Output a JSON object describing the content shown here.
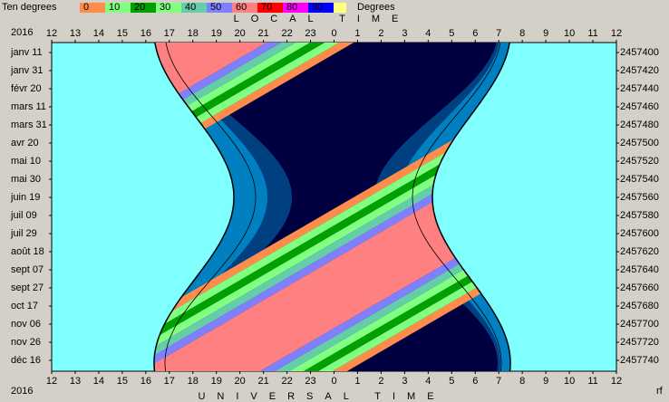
{
  "chart_data": {
    "type": "sky-diagram",
    "legend_title": "Ten degrees",
    "legend_unit": "Degrees",
    "legend": [
      {
        "label": 0,
        "color": "#ff8c4a"
      },
      {
        "label": 10,
        "color": "#80ff80"
      },
      {
        "label": 20,
        "color": "#00a000"
      },
      {
        "label": 30,
        "color": "#80ff80"
      },
      {
        "label": 40,
        "color": "#66cdaa"
      },
      {
        "label": 50,
        "color": "#8080ff"
      },
      {
        "label": 60,
        "color": "#ff8080"
      },
      {
        "label": 70,
        "color": "#ff0000"
      },
      {
        "label": 80,
        "color": "#ff00ff"
      },
      {
        "label": 90,
        "color": "#0000ff"
      }
    ],
    "top_title": "LOCAL TIME",
    "bottom_title": "UNIVERSAL TIME",
    "year": "2016",
    "corner_note": "rf",
    "hours": [
      12,
      13,
      14,
      15,
      16,
      17,
      18,
      19,
      20,
      21,
      22,
      23,
      0,
      1,
      2,
      3,
      4,
      5,
      6,
      7,
      8,
      9,
      10,
      11,
      12
    ],
    "dates": [
      "janv 11",
      "janv 31",
      "févr 20",
      "mars 11",
      "mars 31",
      "avr 20",
      "mai 10",
      "mai 30",
      "juin 19",
      "juil 09",
      "juil 29",
      "août 18",
      "sept 07",
      "sept 27",
      "oct 17",
      "nov 06",
      "nov 26",
      "déc 16"
    ],
    "julian_days": [
      2457400,
      2457420,
      2457440,
      2457460,
      2457480,
      2457500,
      2457520,
      2457540,
      2457560,
      2457580,
      2457600,
      2457620,
      2457640,
      2457660,
      2457680,
      2457700,
      2457720,
      2457740
    ]
  }
}
